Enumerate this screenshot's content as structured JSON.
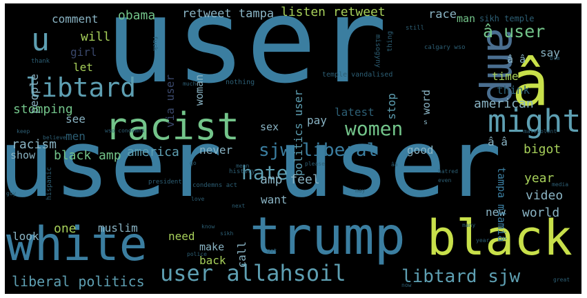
{
  "colors": {
    "background": "#000000",
    "frame": "#ffffff",
    "palette": [
      "#3b7ea0",
      "#4a6e8f",
      "#5e9fb2",
      "#73c48a",
      "#a7d05a",
      "#c8e04a",
      "#2d5f75",
      "#8ab4c4",
      "#39476a"
    ]
  },
  "words": [
    {
      "text": "user"
    },
    {
      "text": "user"
    },
    {
      "text": "user"
    },
    {
      "text": "â"
    },
    {
      "text": "amp"
    },
    {
      "text": "trump"
    },
    {
      "text": "white"
    },
    {
      "text": "black"
    },
    {
      "text": "racist"
    },
    {
      "text": "might"
    },
    {
      "text": "libtard"
    },
    {
      "text": "u"
    },
    {
      "text": "women"
    },
    {
      "text": "hate"
    },
    {
      "text": "user allahsoil"
    },
    {
      "text": "sjw liberal"
    },
    {
      "text": "libtard sjw"
    },
    {
      "text": "liberal politics"
    },
    {
      "text": "â user"
    },
    {
      "text": "obama"
    },
    {
      "text": "listen retweet"
    },
    {
      "text": "retweet tampa"
    },
    {
      "text": "comment"
    },
    {
      "text": "race"
    },
    {
      "text": "man"
    },
    {
      "text": "sikh temple"
    },
    {
      "text": "will"
    },
    {
      "text": "girl"
    },
    {
      "text": "let"
    },
    {
      "text": "people"
    },
    {
      "text": "via user"
    },
    {
      "text": "politics user"
    },
    {
      "text": "stomping"
    },
    {
      "text": "see"
    },
    {
      "text": "men"
    },
    {
      "text": "racism"
    },
    {
      "text": "show"
    },
    {
      "text": "black amp"
    },
    {
      "text": "america"
    },
    {
      "text": "never"
    },
    {
      "text": "sex"
    },
    {
      "text": "pay"
    },
    {
      "text": "latest"
    },
    {
      "text": "american"
    },
    {
      "text": "think"
    },
    {
      "text": "time"
    },
    {
      "text": "say"
    },
    {
      "text": "â â"
    },
    {
      "text": "word"
    },
    {
      "text": "stop"
    },
    {
      "text": "good"
    },
    {
      "text": "bigot"
    },
    {
      "text": "â â"
    },
    {
      "text": "amp feel"
    },
    {
      "text": "want"
    },
    {
      "text": "year"
    },
    {
      "text": "video"
    },
    {
      "text": "new"
    },
    {
      "text": "world"
    },
    {
      "text": "tampa miamiâ"
    },
    {
      "text": "one"
    },
    {
      "text": "muslim"
    },
    {
      "text": "look"
    },
    {
      "text": "need"
    },
    {
      "text": "make"
    },
    {
      "text": "call"
    },
    {
      "text": "back"
    },
    {
      "text": "woman"
    },
    {
      "text": "thing"
    },
    {
      "text": "misogyny"
    },
    {
      "text": "calgary wso"
    },
    {
      "text": "temple vandalised"
    },
    {
      "text": "thank"
    },
    {
      "text": "fuck"
    },
    {
      "text": "nothing"
    },
    {
      "text": "still"
    },
    {
      "text": "much"
    },
    {
      "text": "blm"
    },
    {
      "text": "wso condemns"
    },
    {
      "text": "believe"
    },
    {
      "text": "keep"
    },
    {
      "text": "history"
    },
    {
      "text": "hispanic"
    },
    {
      "text": "president"
    },
    {
      "text": "condemns act"
    },
    {
      "text": "love"
    },
    {
      "text": "hatred"
    },
    {
      "text": "even"
    },
    {
      "text": "media"
    },
    {
      "text": "great"
    },
    {
      "text": "malevolent"
    },
    {
      "text": "know"
    },
    {
      "text": "please"
    },
    {
      "text": "police"
    },
    {
      "text": "many"
    },
    {
      "text": "now"
    },
    {
      "text": "guy"
    },
    {
      "text": "may"
    },
    {
      "text": "s"
    },
    {
      "text": "got"
    },
    {
      "text": "ââ"
    },
    {
      "text": "go"
    },
    {
      "text": "mean"
    },
    {
      "text": "year"
    },
    {
      "text": "sikh"
    },
    {
      "text": "next"
    }
  ]
}
